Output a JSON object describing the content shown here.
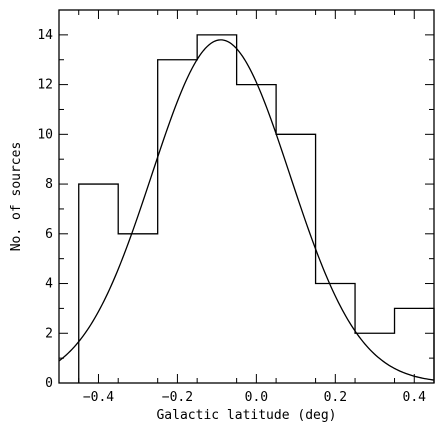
{
  "chart_data": {
    "type": "bar",
    "xlabel": "Galactic latitude (deg)",
    "ylabel": "No. of sources",
    "xlim": [
      -0.5,
      0.45
    ],
    "ylim": [
      0,
      15
    ],
    "x_ticks": [
      -0.4,
      -0.2,
      0.0,
      0.2,
      0.4
    ],
    "x_tick_labels": [
      "−0.4",
      "−0.2",
      "0.0",
      "0.2",
      "0.4"
    ],
    "y_ticks": [
      0,
      2,
      4,
      6,
      8,
      10,
      12,
      14
    ],
    "y_tick_labels": [
      "0",
      "2",
      "4",
      "6",
      "8",
      "10",
      "12",
      "14"
    ],
    "bin_edges": [
      -0.45,
      -0.35,
      -0.25,
      -0.15,
      -0.05,
      0.05,
      0.15,
      0.25,
      0.35,
      0.45
    ],
    "values": [
      8,
      6,
      13,
      14,
      12,
      10,
      4,
      2,
      3
    ],
    "histogram_style": "step",
    "fit_curve": {
      "type": "gaussian",
      "amplitude": 13.8,
      "mean": -0.09,
      "sigma": 0.175
    },
    "grid": false,
    "legend": false
  }
}
